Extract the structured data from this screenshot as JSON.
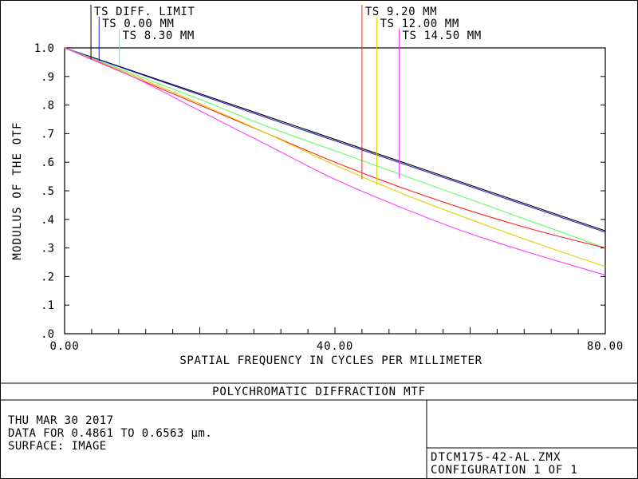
{
  "chart_data": {
    "type": "line",
    "title": "POLYCHROMATIC DIFFRACTION MTF",
    "xlabel": "SPATIAL FREQUENCY IN CYCLES PER MILLIMETER",
    "ylabel": "MODULUS OF THE OTF",
    "xlim": [
      0,
      80
    ],
    "ylim": [
      0,
      1
    ],
    "x_ticks": [
      "0.00",
      "40.00",
      "80.00"
    ],
    "y_ticks": [
      ".0",
      ".1",
      ".2",
      ".3",
      ".4",
      ".5",
      ".6",
      ".7",
      ".8",
      ".9",
      "1.0"
    ],
    "grid": false,
    "x": [
      0,
      10,
      20,
      30,
      40,
      50,
      60,
      70,
      80
    ],
    "legend": {
      "left": [
        "TS DIFF. LIMIT",
        "TS 0.00 MM",
        "TS 8.30 MM"
      ],
      "right": [
        "TS 9.20 MM",
        "TS 12.00 MM",
        "TS 14.50 MM"
      ]
    },
    "series": [
      {
        "name": "TS DIFF. LIMIT",
        "color": "#000000",
        "label_column": "left",
        "marker_x": 3.9,
        "marker_y": 0.96,
        "values": [
          1.0,
          0.92,
          0.84,
          0.76,
          0.68,
          0.6,
          0.52,
          0.44,
          0.36
        ]
      },
      {
        "name": "TS 0.00 MM",
        "color": "#2020c8",
        "label_column": "left",
        "marker_x": 5.1,
        "marker_y": 0.955,
        "values": [
          1.0,
          0.918,
          0.836,
          0.755,
          0.675,
          0.595,
          0.515,
          0.435,
          0.355
        ]
      },
      {
        "name": "TS 8.30 MM",
        "color": "#60ff60",
        "label_column": "left",
        "marker_x": 8.1,
        "marker_y": 0.94,
        "values": [
          1.0,
          0.91,
          0.82,
          0.725,
          0.64,
          0.555,
          0.47,
          0.385,
          0.3
        ]
      },
      {
        "name": "TS 9.20 MM",
        "color": "#ff2020",
        "label_column": "right",
        "marker_x": 44.0,
        "marker_y": 0.54,
        "values": [
          1.0,
          0.9,
          0.8,
          0.7,
          0.6,
          0.51,
          0.43,
          0.36,
          0.3
        ]
      },
      {
        "name": "TS 12.00 MM",
        "color": "#e0d000",
        "label_column": "right",
        "marker_x": 46.2,
        "marker_y": 0.52,
        "values": [
          1.0,
          0.905,
          0.805,
          0.7,
          0.59,
          0.49,
          0.4,
          0.315,
          0.235
        ]
      },
      {
        "name": "TS 14.50 MM",
        "color": "#ff40ff",
        "label_column": "right",
        "marker_x": 49.5,
        "marker_y": 0.545,
        "values": [
          1.0,
          0.9,
          0.78,
          0.66,
          0.54,
          0.44,
          0.35,
          0.275,
          0.205
        ]
      }
    ]
  },
  "footer": {
    "date": "THU MAR 30 2017",
    "data_range": "DATA FOR 0.4861 TO 0.6563 µm.",
    "surface": "SURFACE: IMAGE",
    "file": "DTCM175-42-AL.ZMX",
    "config": "CONFIGURATION 1 OF 1"
  }
}
